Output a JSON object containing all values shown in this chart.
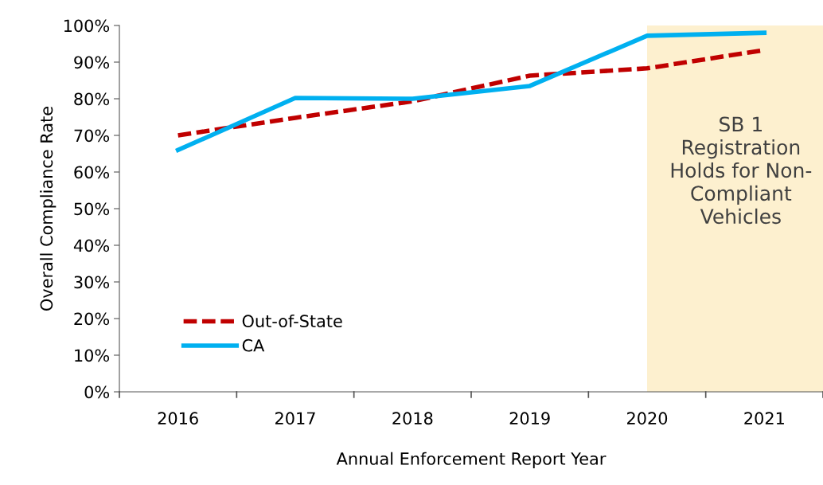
{
  "chart_data": {
    "type": "line",
    "xlabel": "Annual Enforcement Report Year",
    "ylabel": "Overall Compliance Rate",
    "categories": [
      "2016",
      "2017",
      "2018",
      "2019",
      "2020",
      "2021"
    ],
    "series": [
      {
        "name": "Out-of-State",
        "color": "#c00000",
        "line_style": "dashed",
        "values": [
          70,
          74.8,
          79.3,
          86.3,
          88.3,
          93.3
        ]
      },
      {
        "name": "CA",
        "color": "#00b0f0",
        "line_style": "solid",
        "values": [
          66,
          80.2,
          80,
          83.5,
          97.2,
          98
        ]
      }
    ],
    "ylim": [
      0,
      100
    ],
    "yticks": [
      {
        "value": 0,
        "label": "0%"
      },
      {
        "value": 10,
        "label": "10%"
      },
      {
        "value": 20,
        "label": "20%"
      },
      {
        "value": 30,
        "label": "30%"
      },
      {
        "value": 40,
        "label": "40%"
      },
      {
        "value": 50,
        "label": "50%"
      },
      {
        "value": 60,
        "label": "60%"
      },
      {
        "value": 70,
        "label": "70%"
      },
      {
        "value": 80,
        "label": "80%"
      },
      {
        "value": 90,
        "label": "90%"
      },
      {
        "value": 100,
        "label": "100%"
      }
    ],
    "bands": [
      {
        "axis": "x",
        "from": "2020",
        "to": "2021",
        "label": "SB 1\nRegistration\nHolds for Non-\nCompliant\nVehicles",
        "color": "#fdf0cf"
      }
    ],
    "grid": false,
    "legend": "bottom left",
    "marker": "none"
  }
}
